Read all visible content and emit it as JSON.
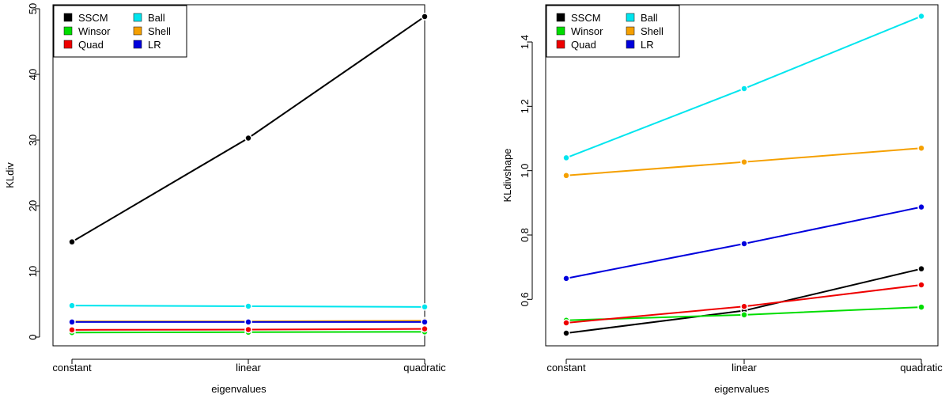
{
  "chart_data": [
    {
      "type": "line",
      "xlabel": "eigenvalues",
      "ylabel": "KLdiv",
      "categories": [
        "constant",
        "linear",
        "quadratic"
      ],
      "ylim": [
        0,
        50
      ],
      "yticks": [
        0,
        10,
        20,
        30,
        40,
        50
      ],
      "legend": {
        "placement": "top-left",
        "columns": 2
      },
      "series": [
        {
          "name": "SSCM",
          "color": "#000000",
          "values": [
            14.5,
            30.3,
            48.8
          ]
        },
        {
          "name": "Winsor",
          "color": "#00dd00",
          "values": [
            0.7,
            0.75,
            0.8
          ]
        },
        {
          "name": "Quad",
          "color": "#ee0000",
          "values": [
            1.1,
            1.15,
            1.25
          ]
        },
        {
          "name": "Ball",
          "color": "#00e5ee",
          "values": [
            4.8,
            4.7,
            4.6
          ]
        },
        {
          "name": "Shell",
          "color": "#f5a000",
          "values": [
            2.4,
            2.4,
            2.5
          ]
        },
        {
          "name": "LR",
          "color": "#0000dd",
          "values": [
            2.3,
            2.3,
            2.3
          ]
        }
      ]
    },
    {
      "type": "line",
      "xlabel": "eigenvalues",
      "ylabel": "KLdivshape",
      "categories": [
        "constant",
        "linear",
        "quadratic"
      ],
      "ylim": [
        0.495,
        1.48
      ],
      "yticks": [
        0.6,
        0.8,
        1.0,
        1.2,
        1.4
      ],
      "ytick_labels": [
        "0.6",
        "0.8",
        "1.0",
        "1.2",
        "1.4"
      ],
      "legend": {
        "placement": "top-left",
        "columns": 2
      },
      "series": [
        {
          "name": "SSCM",
          "color": "#000000",
          "values": [
            0.495,
            0.565,
            0.695
          ]
        },
        {
          "name": "Winsor",
          "color": "#00dd00",
          "values": [
            0.535,
            0.552,
            0.576
          ]
        },
        {
          "name": "Quad",
          "color": "#ee0000",
          "values": [
            0.527,
            0.578,
            0.645
          ]
        },
        {
          "name": "Ball",
          "color": "#00e5ee",
          "values": [
            1.04,
            1.255,
            1.48
          ]
        },
        {
          "name": "Shell",
          "color": "#f5a000",
          "values": [
            0.985,
            1.027,
            1.07
          ]
        },
        {
          "name": "LR",
          "color": "#0000dd",
          "values": [
            0.665,
            0.773,
            0.887
          ]
        }
      ]
    }
  ]
}
